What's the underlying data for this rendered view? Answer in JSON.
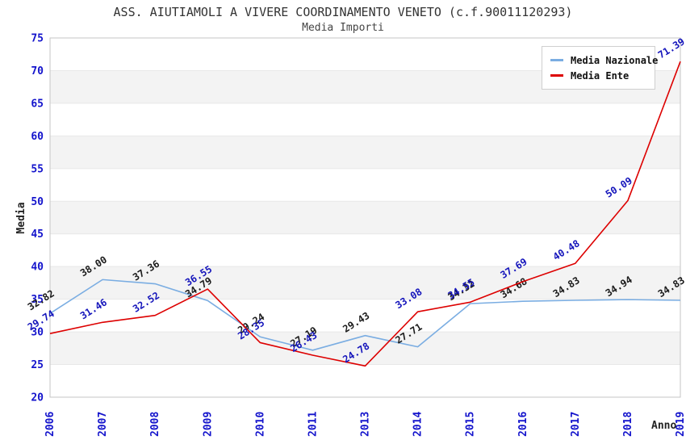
{
  "header": {
    "title": "ASS. AIUTIAMOLI A VIVERE COORDINAMENTO VENETO (c.f.90011120293)",
    "subtitle": "Media Importi"
  },
  "chart_data": {
    "type": "line",
    "categories": [
      "2006",
      "2007",
      "2008",
      "2009",
      "2010",
      "2011",
      "2013",
      "2014",
      "2015",
      "2016",
      "2017",
      "2018",
      "2019"
    ],
    "series": [
      {
        "name": "Media Nazionale",
        "color": "#7aade2",
        "label_color": "#1a1a1a",
        "values": [
          32.82,
          38.0,
          37.36,
          34.79,
          29.24,
          27.19,
          29.43,
          27.71,
          34.32,
          34.68,
          34.83,
          34.94,
          34.83
        ]
      },
      {
        "name": "Media Ente",
        "color": "#dd0000",
        "label_color": "#1414bb",
        "values": [
          29.74,
          31.46,
          32.52,
          36.55,
          28.35,
          26.43,
          24.78,
          33.08,
          34.55,
          37.69,
          40.48,
          50.09,
          71.39
        ]
      }
    ],
    "xlabel": "Anno",
    "ylabel": "Media",
    "ylim": [
      20,
      75
    ],
    "ytick_step": 5,
    "yticks": [
      20,
      25,
      30,
      35,
      40,
      45,
      50,
      55,
      60,
      65,
      70,
      75
    ],
    "grid": "horizontal-bands",
    "band_color": "#f3f3f3",
    "band_edge_color": "#e8e8e8",
    "plot_border_color": "#c6c6c6",
    "tick_label_color": "#1414cc",
    "legend_position": "top-right"
  }
}
